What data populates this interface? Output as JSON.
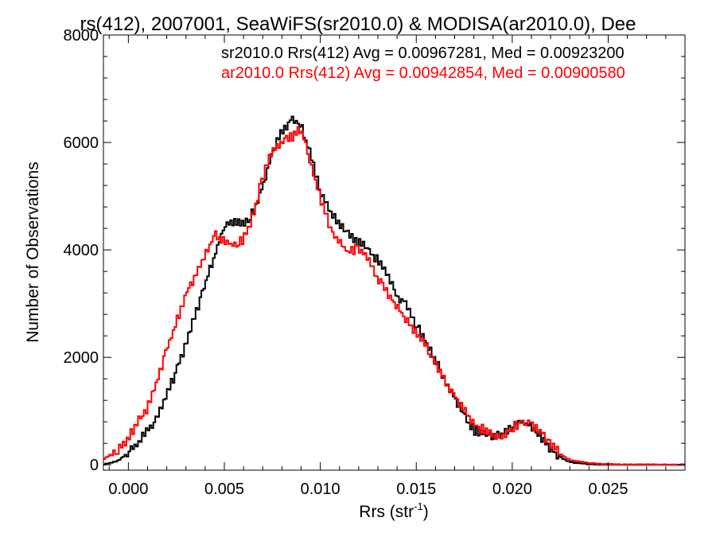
{
  "chart_data": {
    "type": "line",
    "title": "rs(412), 2007001, SeaWiFS(sr2010.0) & MODISA(ar2010.0), Dee",
    "xlabel": "Rrs (str",
    "xlabel_sup": "-1",
    "xlabel_end": ")",
    "ylabel": "Number of Observations",
    "xlim": [
      -0.0013,
      0.029
    ],
    "ylim": [
      -100,
      8000
    ],
    "x_ticks": [
      0.0,
      0.005,
      0.01,
      0.015,
      0.02,
      0.025
    ],
    "x_tick_labels": [
      "0.000",
      "0.005",
      "0.010",
      "0.015",
      "0.020",
      "0.025"
    ],
    "y_ticks": [
      0,
      2000,
      4000,
      6000,
      8000
    ],
    "y_tick_labels": [
      "0",
      "2000",
      "4000",
      "6000",
      "8000"
    ],
    "grid": false,
    "legend_position": "top-right",
    "series": [
      {
        "name": "sr2010.0",
        "legend": "sr2010.0 Rrs(412) Avg = 0.00967281, Med = 0.00923200",
        "color": "#000000",
        "points": [
          [
            -0.0013,
            0
          ],
          [
            -0.0005,
            80
          ],
          [
            0.0,
            230
          ],
          [
            0.0005,
            420
          ],
          [
            0.001,
            640
          ],
          [
            0.0015,
            900
          ],
          [
            0.002,
            1280
          ],
          [
            0.0025,
            1750
          ],
          [
            0.003,
            2250
          ],
          [
            0.0035,
            2800
          ],
          [
            0.004,
            3350
          ],
          [
            0.0045,
            3900
          ],
          [
            0.005,
            4450
          ],
          [
            0.0055,
            4550
          ],
          [
            0.006,
            4500
          ],
          [
            0.0065,
            4700
          ],
          [
            0.007,
            5200
          ],
          [
            0.0075,
            5800
          ],
          [
            0.008,
            6200
          ],
          [
            0.0085,
            6450
          ],
          [
            0.009,
            6300
          ],
          [
            0.0095,
            5750
          ],
          [
            0.01,
            5100
          ],
          [
            0.0105,
            4700
          ],
          [
            0.011,
            4500
          ],
          [
            0.0115,
            4300
          ],
          [
            0.012,
            4150
          ],
          [
            0.0125,
            4000
          ],
          [
            0.013,
            3800
          ],
          [
            0.0135,
            3500
          ],
          [
            0.014,
            3150
          ],
          [
            0.0145,
            3000
          ],
          [
            0.015,
            2600
          ],
          [
            0.0155,
            2300
          ],
          [
            0.016,
            1950
          ],
          [
            0.0165,
            1600
          ],
          [
            0.017,
            1250
          ],
          [
            0.0175,
            900
          ],
          [
            0.018,
            650
          ],
          [
            0.0185,
            560
          ],
          [
            0.019,
            520
          ],
          [
            0.0195,
            560
          ],
          [
            0.02,
            720
          ],
          [
            0.0205,
            800
          ],
          [
            0.021,
            720
          ],
          [
            0.0215,
            520
          ],
          [
            0.022,
            300
          ],
          [
            0.0225,
            140
          ],
          [
            0.023,
            50
          ],
          [
            0.024,
            10
          ],
          [
            0.025,
            2
          ],
          [
            0.027,
            0
          ],
          [
            0.029,
            0
          ]
        ]
      },
      {
        "name": "ar2010.0",
        "legend": "ar2010.0 Rrs(412) Avg = 0.00942854, Med = 0.00900580",
        "color": "#ff0000",
        "points": [
          [
            -0.0013,
            100
          ],
          [
            -0.0005,
            300
          ],
          [
            0.0,
            500
          ],
          [
            0.0005,
            800
          ],
          [
            0.001,
            1050
          ],
          [
            0.0015,
            1550
          ],
          [
            0.002,
            2150
          ],
          [
            0.0025,
            2650
          ],
          [
            0.003,
            3200
          ],
          [
            0.0035,
            3500
          ],
          [
            0.004,
            3900
          ],
          [
            0.0045,
            4300
          ],
          [
            0.005,
            4150
          ],
          [
            0.0055,
            4100
          ],
          [
            0.006,
            4200
          ],
          [
            0.0065,
            4650
          ],
          [
            0.007,
            5350
          ],
          [
            0.0075,
            5850
          ],
          [
            0.008,
            6000
          ],
          [
            0.0085,
            6100
          ],
          [
            0.009,
            6250
          ],
          [
            0.0095,
            5650
          ],
          [
            0.01,
            4950
          ],
          [
            0.0105,
            4450
          ],
          [
            0.011,
            4150
          ],
          [
            0.0115,
            3950
          ],
          [
            0.012,
            4050
          ],
          [
            0.0125,
            3850
          ],
          [
            0.013,
            3450
          ],
          [
            0.0135,
            3200
          ],
          [
            0.014,
            2950
          ],
          [
            0.0145,
            2700
          ],
          [
            0.015,
            2450
          ],
          [
            0.0155,
            2200
          ],
          [
            0.016,
            1900
          ],
          [
            0.0165,
            1550
          ],
          [
            0.017,
            1300
          ],
          [
            0.0175,
            1000
          ],
          [
            0.018,
            750
          ],
          [
            0.0185,
            650
          ],
          [
            0.019,
            560
          ],
          [
            0.0195,
            520
          ],
          [
            0.02,
            680
          ],
          [
            0.0205,
            820
          ],
          [
            0.021,
            780
          ],
          [
            0.0215,
            600
          ],
          [
            0.022,
            380
          ],
          [
            0.0225,
            200
          ],
          [
            0.023,
            90
          ],
          [
            0.024,
            30
          ],
          [
            0.025,
            10
          ],
          [
            0.027,
            2
          ],
          [
            0.029,
            0
          ]
        ]
      }
    ]
  }
}
